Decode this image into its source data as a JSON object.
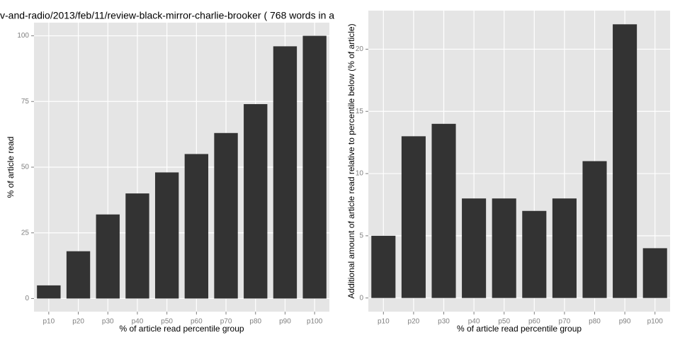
{
  "chart_data": [
    {
      "type": "bar",
      "title": "v-and-radio/2013/feb/11/review-black-mirror-charlie-brooker ( 768 words in a",
      "x_label": "% of article read percentile group",
      "y_label": "% of article read",
      "categories": [
        "p10",
        "p20",
        "p30",
        "p40",
        "p50",
        "p60",
        "p70",
        "p80",
        "p90",
        "p100"
      ],
      "values": [
        5,
        18,
        32,
        40,
        48,
        55,
        63,
        74,
        96,
        100
      ],
      "color": "#333333",
      "ylim": [
        -5,
        105
      ],
      "yticks": [
        0,
        25,
        50,
        75,
        100
      ],
      "grid": true
    },
    {
      "type": "bar",
      "x_label": "% of article read percentile group",
      "y_label": "Additional amount of article read relative to percentile below (% of article)",
      "categories": [
        "p10",
        "p20",
        "p30",
        "p40",
        "p50",
        "p60",
        "p70",
        "p80",
        "p90",
        "p100"
      ],
      "values": [
        5,
        13,
        14,
        8,
        8,
        7,
        8,
        11,
        22,
        4
      ],
      "color": "#333333",
      "ylim": [
        -1.1,
        23.1
      ],
      "yticks": [
        0,
        5,
        10,
        15,
        20
      ],
      "grid": true
    }
  ]
}
